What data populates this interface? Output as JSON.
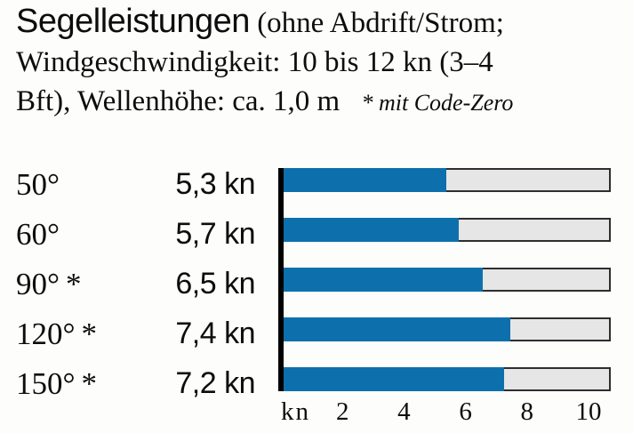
{
  "title": {
    "headline": "Segelleistungen",
    "line1_rest": "(ohne Abdrift/Strom;",
    "line2": "Windgeschwindigkeit: 10 bis 12 kn (3–4",
    "line3": "Bft), Wellenhöhe: ca. 1,0 m",
    "note_star": "*",
    "note_text": "mit Code-Zero"
  },
  "chart_data": {
    "type": "bar",
    "orientation": "horizontal",
    "title": "Segelleistungen (ohne Abdrift/Strom; Windgeschwindigkeit: 10 bis 12 kn (3–4 Bft), Wellenhöhe: ca. 1,0 m * mit Code-Zero",
    "categories": [
      "50°",
      "60°",
      "90° *",
      "120° *",
      "150° *"
    ],
    "values": [
      5.3,
      5.7,
      6.5,
      7.4,
      7.2
    ],
    "value_labels": [
      "5,3 kn",
      "5,7 kn",
      "6,5 kn",
      "7,4 kn",
      "7,2 kn"
    ],
    "xlabel": "kn",
    "x_ticks": [
      "2",
      "4",
      "6",
      "8",
      "10"
    ],
    "x_tick_values": [
      2,
      4,
      6,
      8,
      10
    ],
    "xlim": [
      0,
      10.65
    ],
    "grid": false,
    "legend": "none",
    "bar_color": "#0d70ad",
    "track_color": "#e6e6e6",
    "track_border_color": "#2e2e2e",
    "axis_color": "#000000",
    "text_color": "#0d0d0d"
  }
}
